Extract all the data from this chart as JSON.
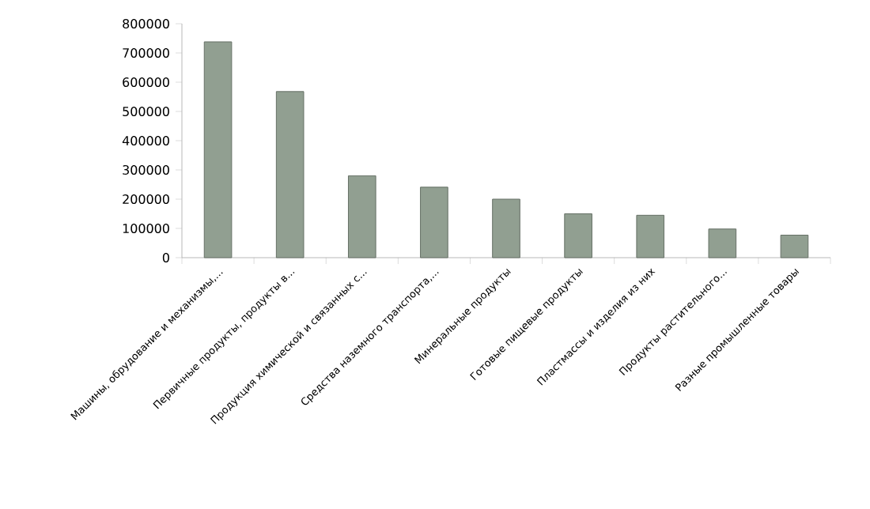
{
  "chart_data": {
    "type": "bar",
    "categories": [
      "Машины, обрудование и механизмы,...",
      "Первичные продукты, продукты в...",
      "Продукция химической и связанных с...",
      "Средства наземного транспорта,...",
      "Минеральные продукты",
      "Готовые пищевые продукты",
      "Пластмассы и изделия из них",
      "Продукты растительного...",
      "Разные промышленные товары"
    ],
    "values": [
      738000,
      568000,
      280000,
      241000,
      200000,
      150000,
      145000,
      98000,
      77000
    ],
    "color": "#919f91",
    "ylim": [
      0,
      800000
    ],
    "yticks": [
      0,
      100000,
      200000,
      300000,
      400000,
      500000,
      600000,
      700000,
      800000
    ],
    "grid": false
  }
}
